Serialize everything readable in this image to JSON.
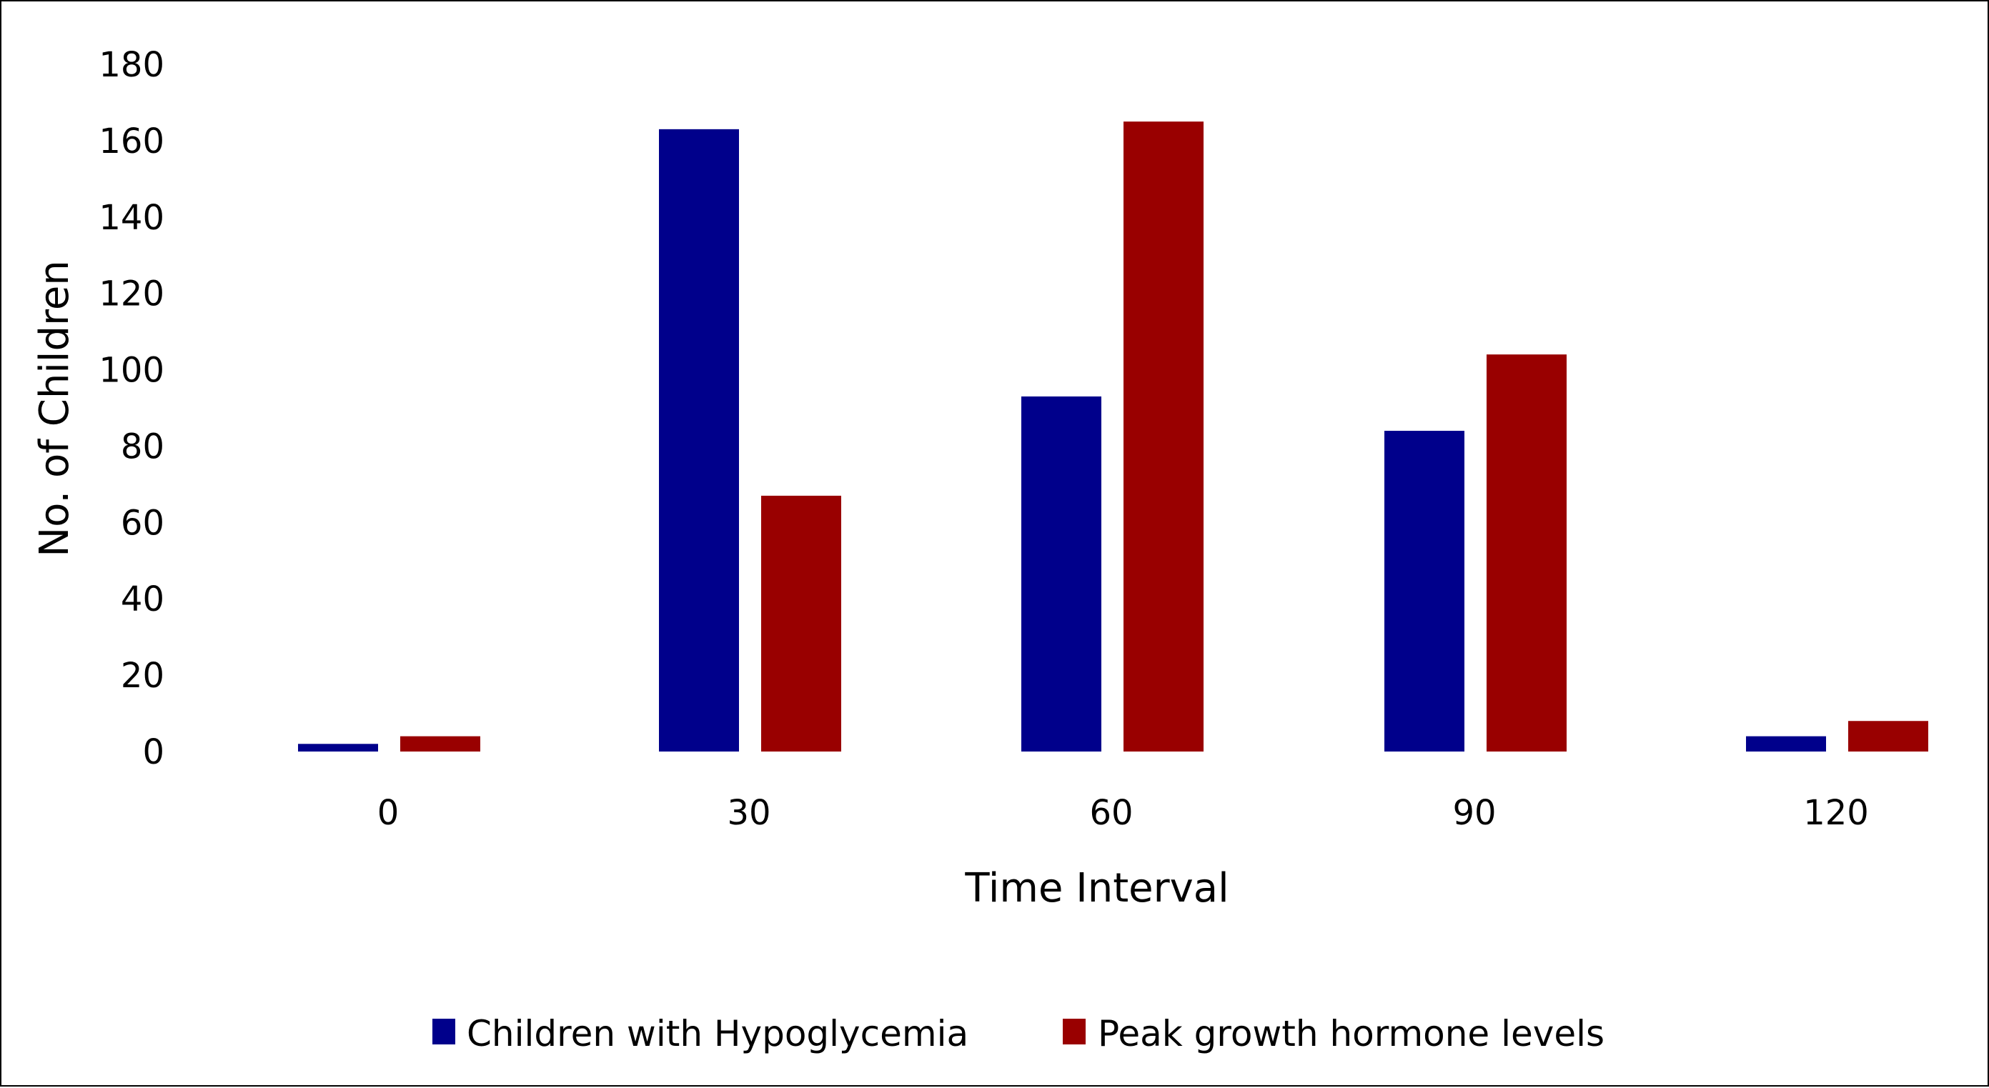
{
  "chart_data": {
    "type": "bar",
    "title": "",
    "xlabel": "Time Interval",
    "ylabel": "No. of Children",
    "categories": [
      "0",
      "30",
      "60",
      "90",
      "120"
    ],
    "ylim": [
      0,
      180
    ],
    "yticks": [
      0,
      20,
      40,
      60,
      80,
      100,
      120,
      140,
      160,
      180
    ],
    "grid": false,
    "legend_position": "bottom",
    "series": [
      {
        "name": "Children with Hypoglycemia",
        "color": "#00008b",
        "values": [
          2,
          163,
          93,
          84,
          4
        ]
      },
      {
        "name": "Peak growth hormone levels",
        "color": "#990000",
        "values": [
          4,
          67,
          165,
          104,
          8
        ]
      }
    ]
  }
}
